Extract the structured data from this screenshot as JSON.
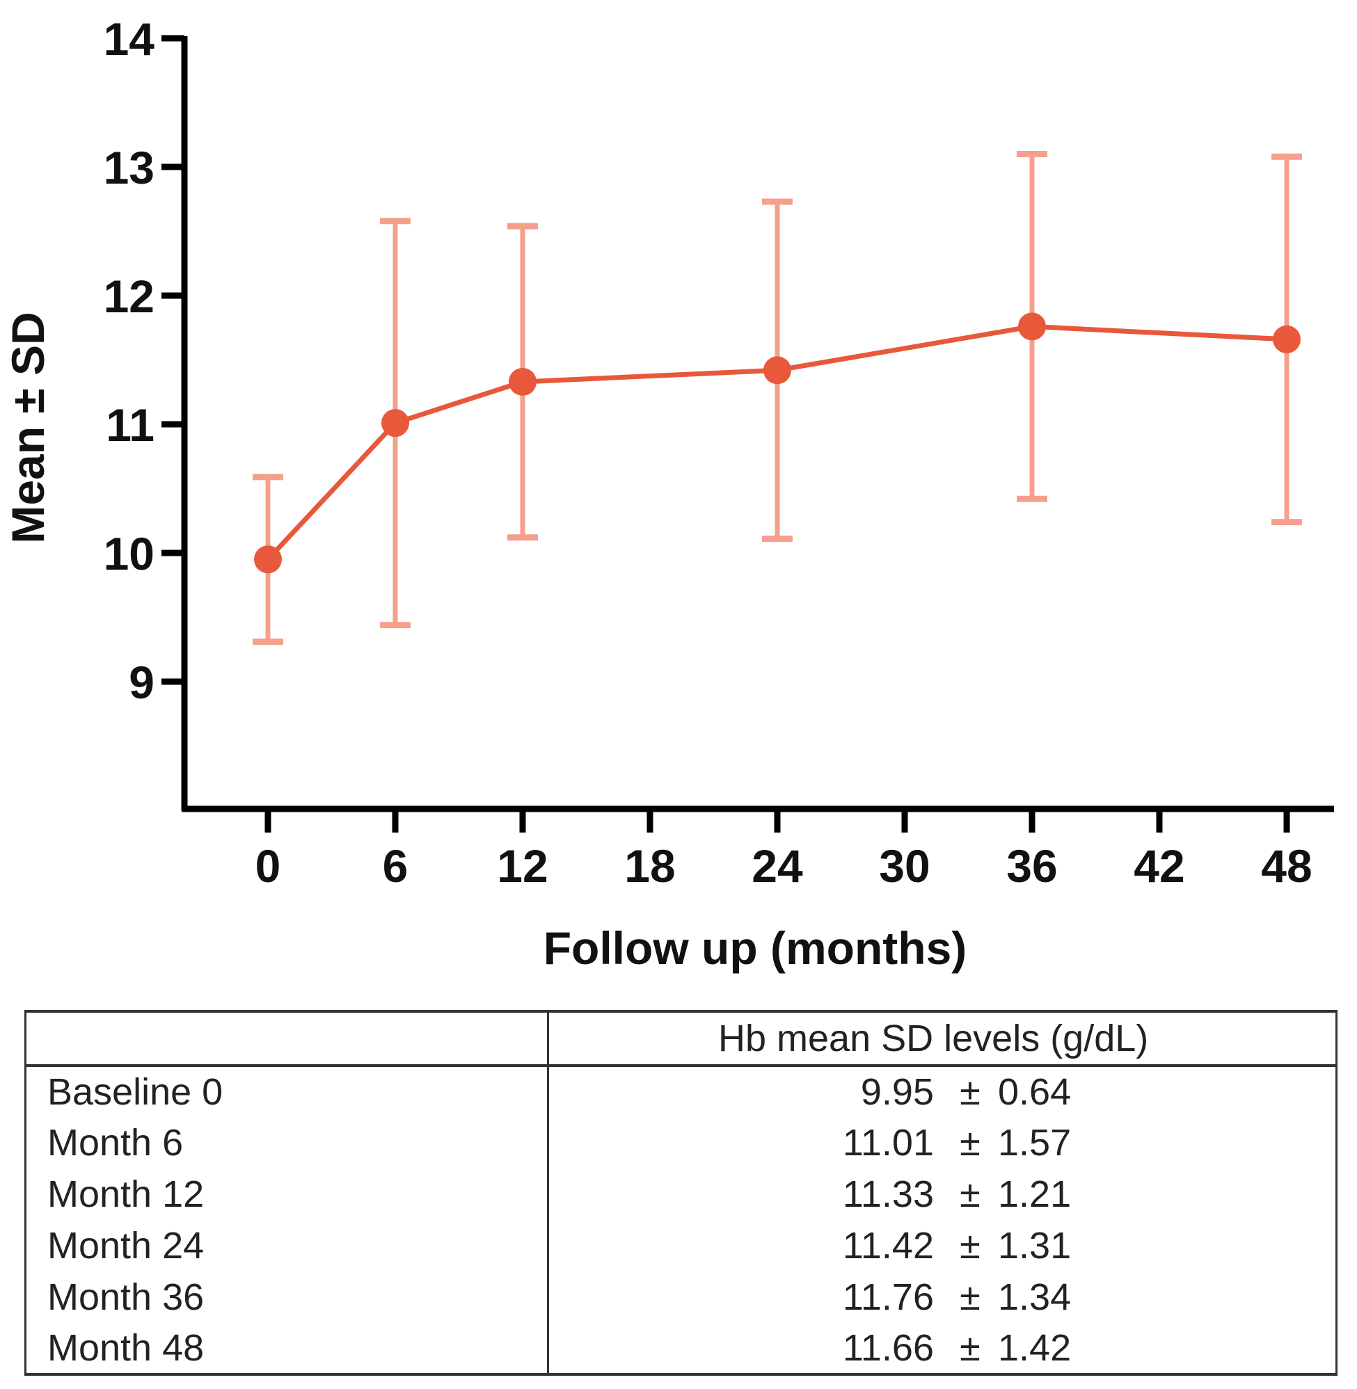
{
  "chart_data": {
    "type": "line",
    "title": "",
    "xlabel": "Follow up (months)",
    "ylabel": "Mean ± SD",
    "xlim": [
      0,
      48
    ],
    "ylim": [
      8,
      14
    ],
    "x_ticks": [
      0,
      6,
      12,
      18,
      24,
      30,
      36,
      42,
      48
    ],
    "y_ticks": [
      9,
      10,
      11,
      12,
      13,
      14
    ],
    "grid": false,
    "legend": null,
    "series": [
      {
        "name": "Hb mean SD levels (g/dL)",
        "color": "#e8583a",
        "error_bar_color": "#f4a08c",
        "x": [
          0,
          6,
          12,
          24,
          36,
          48
        ],
        "values": [
          9.95,
          11.01,
          11.33,
          11.42,
          11.76,
          11.66
        ],
        "error": [
          0.64,
          1.57,
          1.21,
          1.31,
          1.34,
          1.42
        ]
      }
    ]
  },
  "table": {
    "header": {
      "label_col": "",
      "value_col": "Hb mean SD levels (g/dL)"
    },
    "rows": [
      {
        "label": "Baseline 0",
        "mean": "9.95",
        "pm": "±",
        "sd": "0.64"
      },
      {
        "label": "Month 6",
        "mean": "11.01",
        "pm": "±",
        "sd": "1.57"
      },
      {
        "label": "Month 12",
        "mean": "11.33",
        "pm": "±",
        "sd": "1.21"
      },
      {
        "label": "Month 24",
        "mean": "11.42",
        "pm": "±",
        "sd": "1.31"
      },
      {
        "label": "Month 36",
        "mean": "11.76",
        "pm": "±",
        "sd": "1.34"
      },
      {
        "label": "Month 48",
        "mean": "11.66",
        "pm": "±",
        "sd": "1.42"
      }
    ]
  }
}
